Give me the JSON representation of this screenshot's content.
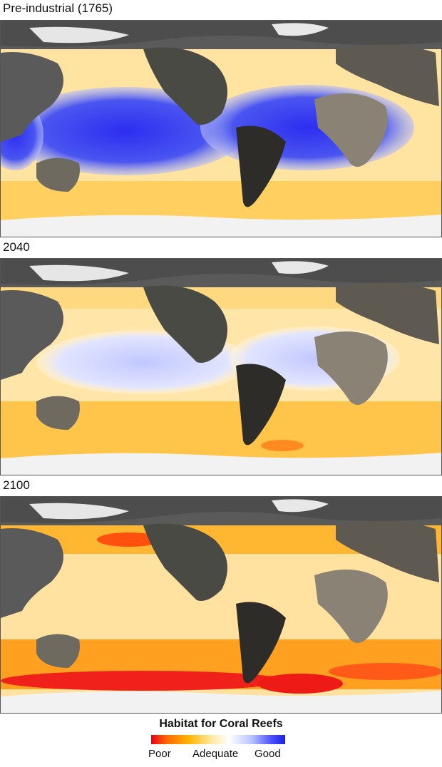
{
  "panels": [
    {
      "title": "Pre-industrial (1765)",
      "palette": "preindustrial"
    },
    {
      "title": "2040",
      "palette": "y2040"
    },
    {
      "title": "2100",
      "palette": "y2100"
    }
  ],
  "legend": {
    "title": "Habitat for Coral Reefs",
    "labels": {
      "poor": "Poor",
      "adequate": "Adequate",
      "good": "Good"
    },
    "colors": {
      "poor": "#e8001a",
      "adequate": "#ffffff",
      "good": "#2020e0"
    }
  }
}
